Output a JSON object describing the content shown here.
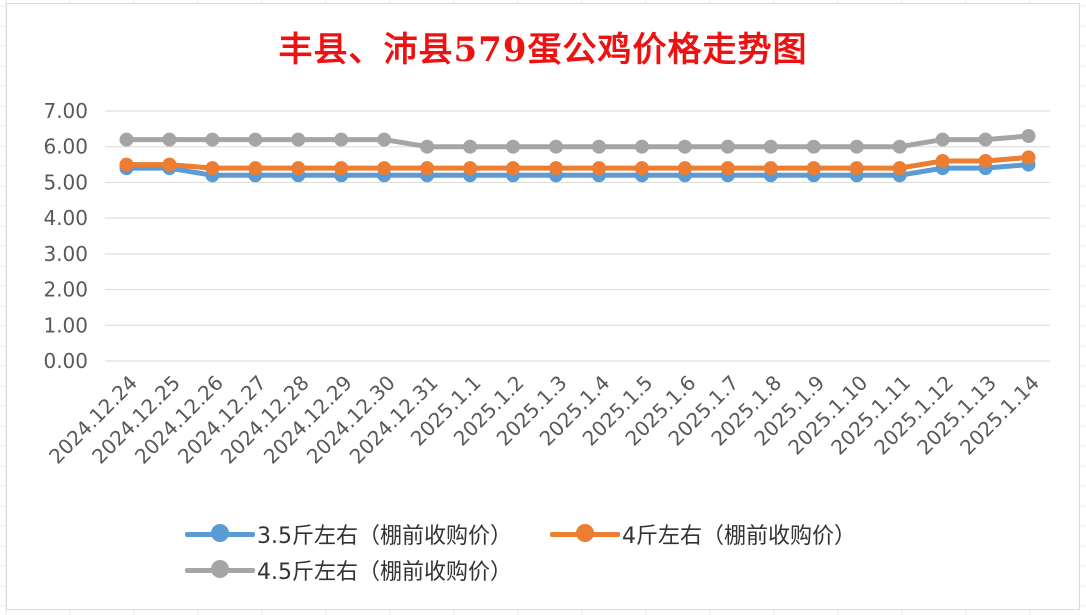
{
  "chart_data": {
    "type": "line",
    "title": "丰县、沛县579蛋公鸡价格走势图",
    "xlabel": "",
    "ylabel": "",
    "ylim": [
      0,
      7
    ],
    "yticks": [
      "0.00",
      "1.00",
      "2.00",
      "3.00",
      "4.00",
      "5.00",
      "6.00",
      "7.00"
    ],
    "grid": true,
    "legend_position": "bottom",
    "categories": [
      "2024.12.24",
      "2024.12.25",
      "2024.12.26",
      "2024.12.27",
      "2024.12.28",
      "2024.12.29",
      "2024.12.30",
      "2024.12.31",
      "2025.1.1",
      "2025.1.2",
      "2025.1.3",
      "2025.1.4",
      "2025.1.5",
      "2025.1.6",
      "2025.1.7",
      "2025.1.8",
      "2025.1.9",
      "2025.1.10",
      "2025.1.11",
      "2025.1.12",
      "2025.1.13",
      "2025.1.14"
    ],
    "series": [
      {
        "name": "3.5斤左右（棚前收购价）",
        "color": "#5b9bd5",
        "values": [
          5.4,
          5.4,
          5.2,
          5.2,
          5.2,
          5.2,
          5.2,
          5.2,
          5.2,
          5.2,
          5.2,
          5.2,
          5.2,
          5.2,
          5.2,
          5.2,
          5.2,
          5.2,
          5.2,
          5.4,
          5.4,
          5.5
        ]
      },
      {
        "name": "4斤左右（棚前收购价）",
        "color": "#ed7d31",
        "values": [
          5.5,
          5.5,
          5.4,
          5.4,
          5.4,
          5.4,
          5.4,
          5.4,
          5.4,
          5.4,
          5.4,
          5.4,
          5.4,
          5.4,
          5.4,
          5.4,
          5.4,
          5.4,
          5.4,
          5.6,
          5.6,
          5.7
        ]
      },
      {
        "name": "4.5斤左右（棚前收购价）",
        "color": "#a5a5a5",
        "values": [
          6.2,
          6.2,
          6.2,
          6.2,
          6.2,
          6.2,
          6.2,
          6.0,
          6.0,
          6.0,
          6.0,
          6.0,
          6.0,
          6.0,
          6.0,
          6.0,
          6.0,
          6.0,
          6.0,
          6.2,
          6.2,
          6.3
        ]
      }
    ]
  }
}
